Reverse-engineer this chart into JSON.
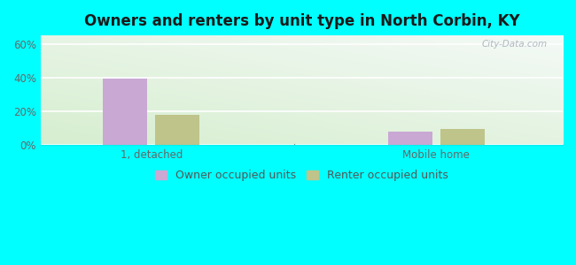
{
  "title": "Owners and renters by unit type in North Corbin, KY",
  "categories": [
    "1, detached",
    "Mobile home"
  ],
  "owner_values": [
    39.5,
    8.0
  ],
  "renter_values": [
    18.0,
    9.5
  ],
  "owner_color": "#c9a8d4",
  "renter_color": "#bfc48a",
  "background_color": "#00ffff",
  "plot_bg_green": "#d4edcc",
  "plot_bg_white": "#f5faf8",
  "ylabel_ticks": [
    "0%",
    "20%",
    "40%",
    "60%"
  ],
  "ytick_values": [
    0,
    20,
    40,
    60
  ],
  "ylim": [
    0,
    65
  ],
  "bar_width": 0.28,
  "title_fontsize": 12,
  "tick_fontsize": 8.5,
  "legend_fontsize": 9,
  "watermark": "City-Data.com",
  "owner_label": "Owner occupied units",
  "renter_label": "Renter occupied units"
}
